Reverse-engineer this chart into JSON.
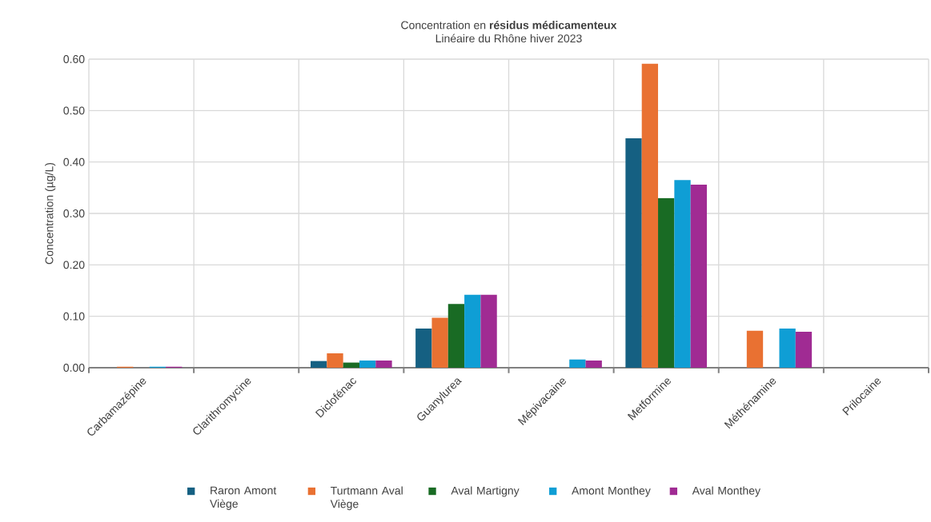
{
  "chart_data": {
    "type": "bar",
    "title": "Concentration en **résidus médicamenteux**",
    "subtitle": "Linéaire du Rhône hiver 2023",
    "ylabel": "Concentration (µg/L)",
    "categories": [
      "Carbamazépine",
      "Clarithromycine",
      "Diclofénac",
      "Guanylurea",
      "Mépivacaine",
      "Metformine",
      "Méthénamine",
      "Prilocaine"
    ],
    "series": [
      {
        "name": "Raron Amont Viège",
        "color": "#156082",
        "values": [
          0,
          0,
          0.013,
          0.076,
          0,
          0.446,
          0,
          0
        ]
      },
      {
        "name": "Turtmann Aval Viège",
        "color": "#e97132",
        "values": [
          0.002,
          0,
          0.028,
          0.097,
          0,
          0.591,
          0.072,
          0
        ]
      },
      {
        "name": "Aval Martigny",
        "color": "#196b24",
        "values": [
          0,
          0,
          0.01,
          0.124,
          0,
          0.33,
          0,
          0
        ]
      },
      {
        "name": "Amont Monthey",
        "color": "#0f9ed5",
        "values": [
          0.002,
          0,
          0.014,
          0.142,
          0.016,
          0.365,
          0.076,
          0
        ]
      },
      {
        "name": "Aval Monthey",
        "color": "#a02b93",
        "values": [
          0.002,
          0,
          0.014,
          0.142,
          0.014,
          0.356,
          0.07,
          0
        ]
      }
    ],
    "ylim": [
      0,
      0.6
    ],
    "yticks": [
      {
        "value": 0,
        "label": "0.00"
      },
      {
        "value": 0.1,
        "label": "0.10"
      },
      {
        "value": 0.2,
        "label": "0.20"
      },
      {
        "value": 0.3,
        "label": "0.30"
      },
      {
        "value": 0.4,
        "label": "0.40"
      },
      {
        "value": 0.5,
        "label": "0.50"
      },
      {
        "value": 0.6,
        "label": "0.60"
      }
    ],
    "grid": true,
    "legend": "bottom"
  }
}
